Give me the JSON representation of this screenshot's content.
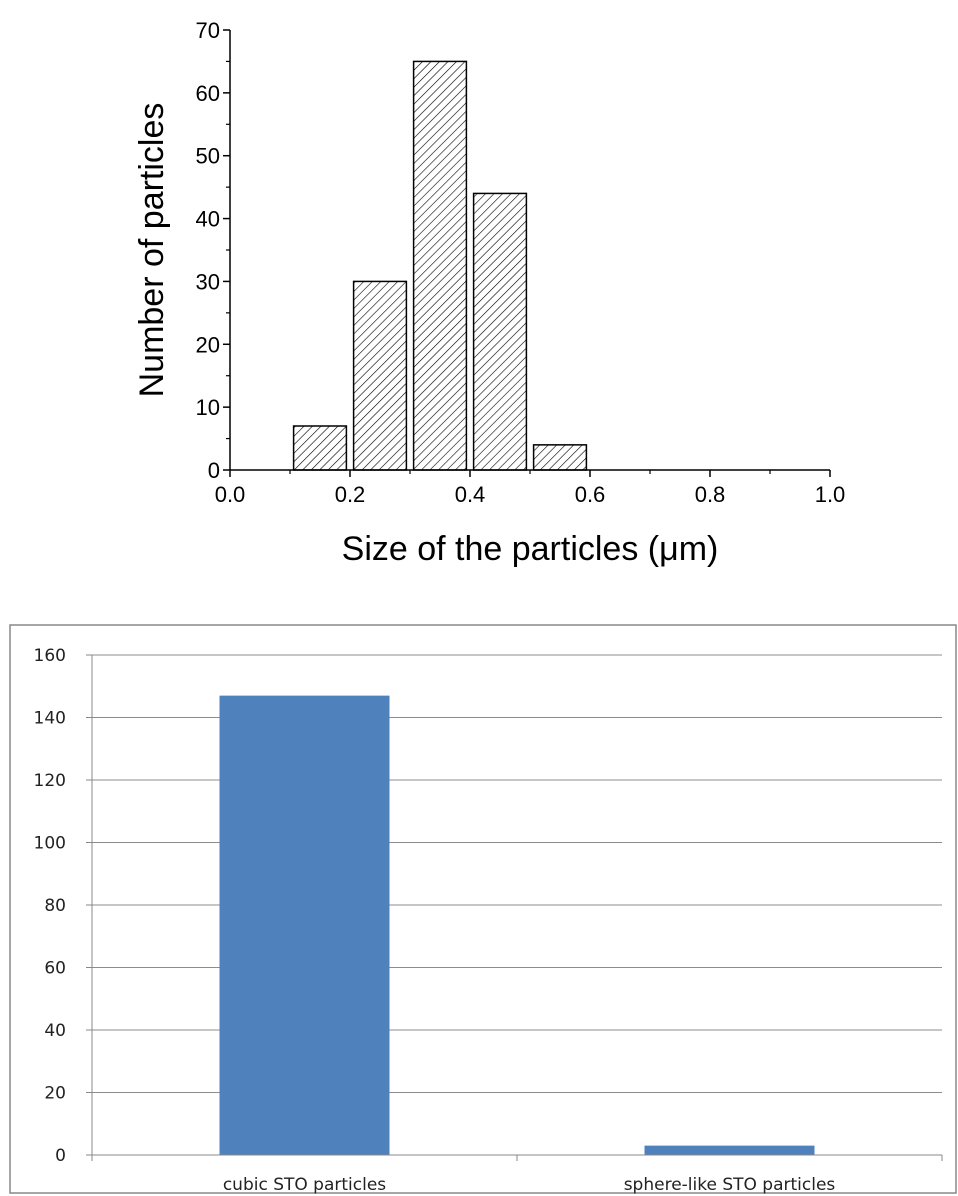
{
  "chart_data": [
    {
      "type": "bar",
      "subtype": "histogram",
      "bins": [
        {
          "x": 0.15,
          "value": 7
        },
        {
          "x": 0.25,
          "value": 30
        },
        {
          "x": 0.35,
          "value": 65
        },
        {
          "x": 0.45,
          "value": 44
        },
        {
          "x": 0.55,
          "value": 4
        }
      ],
      "bin_width": 0.1,
      "xlabel": "Size of the particles (μm)",
      "ylabel": "Number of particles",
      "xlim": [
        0.0,
        1.0
      ],
      "ylim": [
        0,
        70
      ],
      "xticks": [
        "0.0",
        "0.2",
        "0.4",
        "0.6",
        "0.8",
        "1.0"
      ],
      "yticks": [
        "0",
        "10",
        "20",
        "30",
        "40",
        "50",
        "60",
        "70"
      ],
      "bar_fill": "hatched",
      "bar_color": "#000000",
      "grid": false
    },
    {
      "type": "bar",
      "categories": [
        "cubic STO particles",
        "sphere-like STO particles"
      ],
      "values": [
        147,
        3
      ],
      "ylim": [
        0,
        160
      ],
      "yticks": [
        "0",
        "20",
        "40",
        "60",
        "80",
        "100",
        "120",
        "140",
        "160"
      ],
      "bar_color": "#4f81bd",
      "grid": true
    }
  ]
}
